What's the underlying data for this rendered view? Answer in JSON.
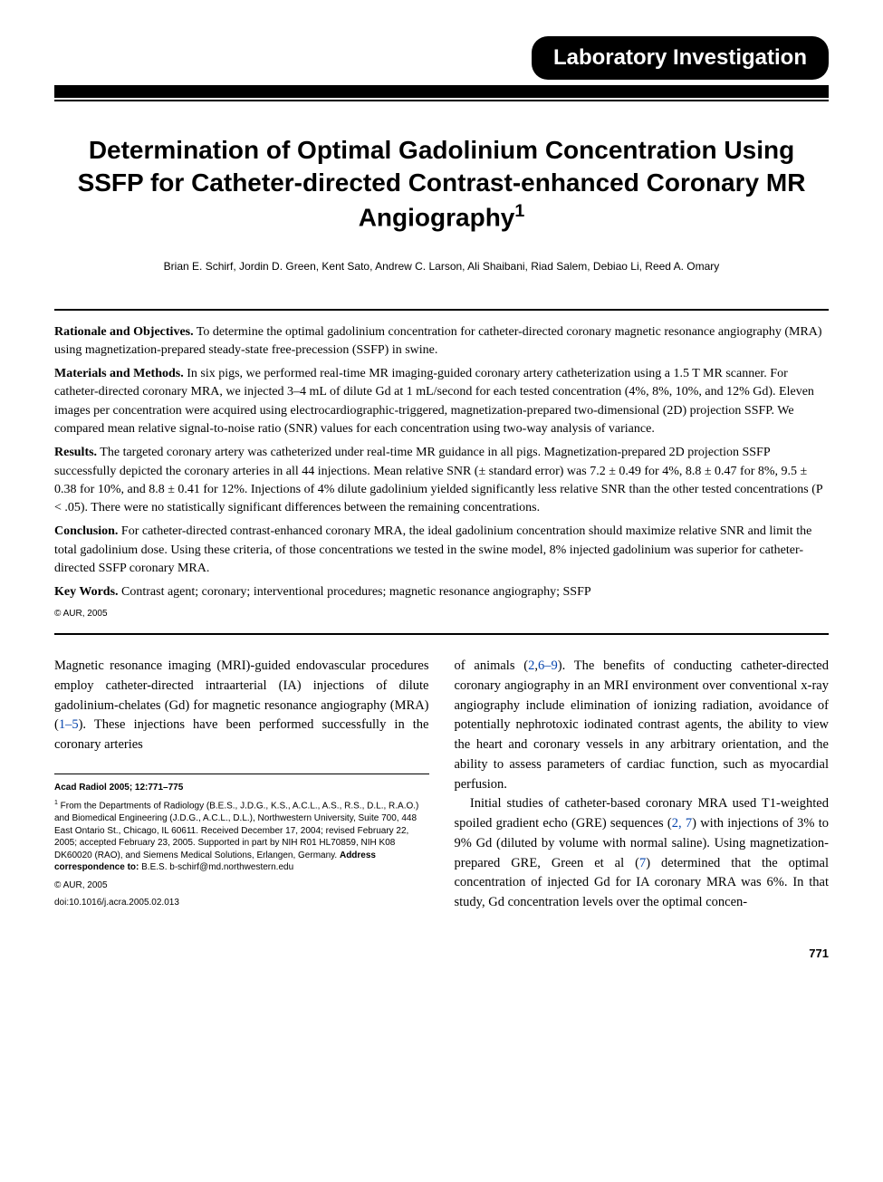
{
  "section_label": "Laboratory Investigation",
  "title": "Determination of Optimal Gadolinium Concentration Using SSFP for Catheter-directed Contrast-enhanced Coronary MR Angiography",
  "title_sup": "1",
  "authors": "Brian E. Schirf, Jordin D. Green, Kent Sato, Andrew C. Larson, Ali Shaibani, Riad Salem, Debiao Li, Reed A. Omary",
  "abstract": {
    "rationale_label": "Rationale and Objectives.",
    "rationale_text": " To determine the optimal gadolinium concentration for catheter-directed coronary magnetic resonance angiography (MRA) using magnetization-prepared steady-state free-precession (SSFP) in swine.",
    "methods_label": "Materials and Methods.",
    "methods_text": " In six pigs, we performed real-time MR imaging-guided coronary artery catheterization using a 1.5 T MR scanner. For catheter-directed coronary MRA, we injected 3–4 mL of dilute Gd at 1 mL/second for each tested concentration (4%, 8%, 10%, and 12% Gd). Eleven images per concentration were acquired using electrocardiographic-triggered, magnetization-prepared two-dimensional (2D) projection SSFP. We compared mean relative signal-to-noise ratio (SNR) values for each concentration using two-way analysis of variance.",
    "results_label": "Results.",
    "results_text": " The targeted coronary artery was catheterized under real-time MR guidance in all pigs. Magnetization-prepared 2D projection SSFP successfully depicted the coronary arteries in all 44 injections. Mean relative SNR (± standard error) was 7.2 ± 0.49 for 4%, 8.8 ± 0.47 for 8%, 9.5 ± 0.38 for 10%, and 8.8 ± 0.41 for 12%. Injections of 4% dilute gadolinium yielded significantly less relative SNR than the other tested concentrations (P < .05). There were no statistically significant differences between the remaining concentrations.",
    "conclusion_label": "Conclusion.",
    "conclusion_text": " For catheter-directed contrast-enhanced coronary MRA, the ideal gadolinium concentration should maximize relative SNR and limit the total gadolinium dose. Using these criteria, of those concentrations we tested in the swine model, 8% injected gadolinium was superior for catheter-directed SSFP coronary MRA.",
    "keywords_label": "Key Words.",
    "keywords_text": " Contrast agent; coronary; interventional procedures; magnetic resonance angiography; SSFP",
    "copyright": "© AUR, 2005"
  },
  "body": {
    "p1a": "Magnetic resonance imaging (MRI)-guided endovascular procedures employ catheter-directed intraarterial (IA) injections of dilute gadolinium-chelates (Gd) for magnetic resonance angiography (MRA) (",
    "p1_ref1": "1–5",
    "p1b": "). These injections have been performed successfully in the coronary arteries",
    "p2a": "of animals (",
    "p2_ref1": "2",
    "p2b": ",",
    "p2_ref2": "6–9",
    "p2c": "). The benefits of conducting catheter-directed coronary angiography in an MRI environment over conventional x-ray angiography include elimination of ionizing radiation, avoidance of potentially nephrotoxic iodinated contrast agents, the ability to view the heart and coronary vessels in any arbitrary orientation, and the ability to assess parameters of cardiac function, such as myocardial perfusion.",
    "p3a": "Initial studies of catheter-based coronary MRA used T1-weighted spoiled gradient echo (GRE) sequences (",
    "p3_ref1": "2, 7",
    "p3b": ") with injections of 3% to 9% Gd (diluted by volume with normal saline). Using magnetization-prepared GRE, Green et al (",
    "p3_ref2": "7",
    "p3c": ") determined that the optimal concentration of injected Gd for IA coronary MRA was 6%. In that study, Gd concentration levels over the optimal concen-"
  },
  "footnote": {
    "journal": "Acad Radiol 2005; 12:771–775",
    "affil_sup": "1",
    "affil": " From the Departments of Radiology (B.E.S., J.D.G., K.S., A.C.L., A.S., R.S., D.L., R.A.O.) and Biomedical Engineering (J.D.G., A.C.L., D.L.), Northwestern University, Suite 700, 448 East Ontario St., Chicago, IL 60611. Received December 17, 2004; revised February 22, 2005; accepted February 23, 2005. Supported in part by NIH R01 HL70859, NIH K08 DK60020 (RAO), and Siemens Medical Solutions, Erlangen, Germany. ",
    "corr_label": "Address correspondence to:",
    "corr_text": " B.E.S. b-schirf@md.northwestern.edu",
    "copyright": "© AUR, 2005",
    "doi": "doi:10.1016/j.acra.2005.02.013"
  },
  "page_number": "771",
  "colors": {
    "background": "#ffffff",
    "text": "#000000",
    "link": "#0645ad",
    "header_bg": "#000000",
    "header_fg": "#ffffff"
  },
  "typography": {
    "title_fontsize": 28,
    "section_label_fontsize": 24,
    "authors_fontsize": 12,
    "abstract_fontsize": 14,
    "body_fontsize": 14.5,
    "footnote_fontsize": 10,
    "pagenum_fontsize": 13
  }
}
